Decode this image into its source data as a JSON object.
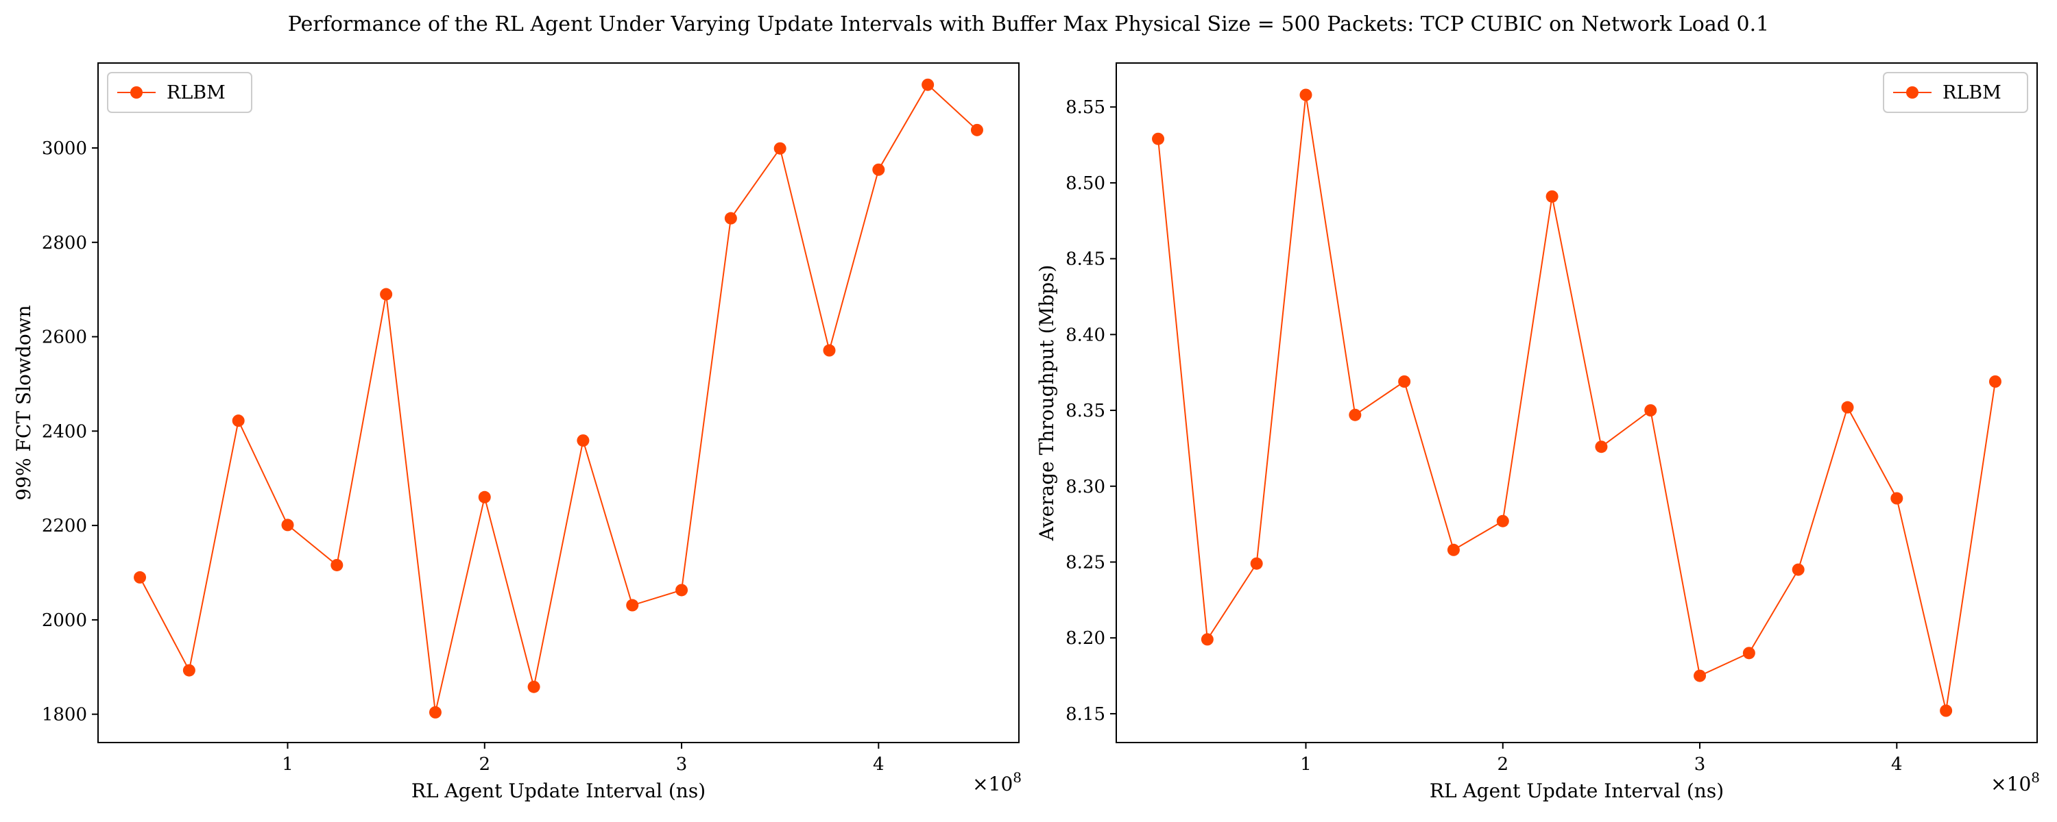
{
  "figure": {
    "title": "Performance of the RL Agent Under Varying Update Intervals with Buffer Max Physical Size = 500 Packets: TCP CUBIC on Network Load 0.1",
    "accent_color": "#ff4500"
  },
  "chart_data": [
    {
      "type": "line",
      "xlabel": "RL Agent Update Interval (ns)",
      "ylabel": "99% FCT Slowdown",
      "x_scale_label": "×10",
      "x_scale_exp": "8",
      "xlim": [
        0.0375,
        4.7125
      ],
      "ylim": [
        1740,
        3180
      ],
      "xticks": [
        1,
        2,
        3,
        4
      ],
      "xtick_labels": [
        "1",
        "2",
        "3",
        "4"
      ],
      "yticks": [
        1800,
        2000,
        2200,
        2400,
        2600,
        2800,
        3000
      ],
      "ytick_labels": [
        "1800",
        "2000",
        "2200",
        "2400",
        "2600",
        "2800",
        "3000"
      ],
      "legend": {
        "position": "upper-left",
        "entries": [
          "RLBM"
        ]
      },
      "grid": false,
      "series": [
        {
          "name": "RLBM",
          "color": "#ff4500",
          "x": [
            0.25,
            0.5,
            0.75,
            1.0,
            1.25,
            1.5,
            1.75,
            2.0,
            2.25,
            2.5,
            2.75,
            3.0,
            3.25,
            3.5,
            3.75,
            4.0,
            4.25,
            4.5
          ],
          "y": [
            2090,
            1893,
            2422,
            2201,
            2116,
            2690,
            1804,
            2260,
            1858,
            2380,
            2031,
            2063,
            2851,
            2999,
            2571,
            2954,
            3134,
            3038
          ]
        }
      ]
    },
    {
      "type": "line",
      "xlabel": "RL Agent Update Interval (ns)",
      "ylabel": "Average Throughput (Mbps)",
      "x_scale_label": "×10",
      "x_scale_exp": "8",
      "xlim": [
        0.0375,
        4.7125
      ],
      "ylim": [
        8.131,
        8.579
      ],
      "xticks": [
        1,
        2,
        3,
        4
      ],
      "xtick_labels": [
        "1",
        "2",
        "3",
        "4"
      ],
      "yticks": [
        8.15,
        8.2,
        8.25,
        8.3,
        8.35,
        8.4,
        8.45,
        8.5,
        8.55
      ],
      "ytick_labels": [
        "8.15",
        "8.20",
        "8.25",
        "8.30",
        "8.35",
        "8.40",
        "8.45",
        "8.50",
        "8.55"
      ],
      "legend": {
        "position": "upper-right",
        "entries": [
          "RLBM"
        ]
      },
      "grid": false,
      "series": [
        {
          "name": "RLBM",
          "color": "#ff4500",
          "x": [
            0.25,
            0.5,
            0.75,
            1.0,
            1.25,
            1.5,
            1.75,
            2.0,
            2.25,
            2.5,
            2.75,
            3.0,
            3.25,
            3.5,
            3.75,
            4.0,
            4.25,
            4.5
          ],
          "y": [
            8.529,
            8.199,
            8.249,
            8.558,
            8.347,
            8.369,
            8.258,
            8.277,
            8.491,
            8.326,
            8.35,
            8.175,
            8.19,
            8.245,
            8.352,
            8.292,
            8.152,
            8.369
          ]
        }
      ]
    }
  ]
}
